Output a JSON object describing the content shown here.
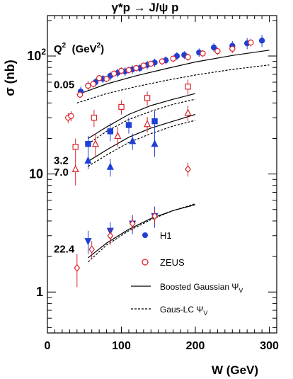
{
  "chart_data": {
    "type": "scatter",
    "title": "γ*p → J/ψ p",
    "xlabel": "W  (GeV)",
    "ylabel": "σ (nb)",
    "xlim": [
      0,
      310
    ],
    "ylim": [
      0.45,
      220
    ],
    "yscale": "log",
    "x_ticks": [
      {
        "v": 0,
        "label": "0"
      },
      {
        "v": 100,
        "label": "100"
      },
      {
        "v": 200,
        "label": "200"
      },
      {
        "v": 300,
        "label": "300"
      }
    ],
    "y_ticks": [
      {
        "v": 1,
        "label": "1",
        "sup": ""
      },
      {
        "v": 10,
        "label": "10",
        "sup": ""
      },
      {
        "v": 100,
        "label": "10",
        "sup": "2"
      }
    ],
    "q2_header": {
      "main": "Q",
      "sup1": "2",
      "open": "  (GeV",
      "sup2": "2",
      "close": ")"
    },
    "bin_labels": [
      {
        "text": "0.05",
        "y": 58
      },
      {
        "text": "3.2",
        "y": 13.2
      },
      {
        "text": "7.0",
        "y": 10.5
      },
      {
        "text": "22.4",
        "y": 2.35
      }
    ],
    "colors": {
      "h1": "#1f3fd6",
      "zeus": "#d8242a",
      "curve": "#000000"
    },
    "legend": {
      "h1": "H1",
      "zeus": "ZEUS",
      "solid_main": "Boosted Gaussian Ψ",
      "solid_sub": "V",
      "dashed_main": "Gaus-LC Ψ",
      "dashed_sub": "V"
    },
    "series": [
      {
        "name": "H1",
        "bin": "0.05",
        "marker": "circle",
        "filled": true,
        "color": "#1f3fd6",
        "x": [
          45,
          55,
          65,
          75,
          85,
          95,
          105,
          115,
          125,
          135,
          145,
          160,
          175,
          185,
          205,
          225,
          250,
          270,
          290
        ],
        "y": [
          50,
          56,
          60,
          64,
          68,
          72,
          74,
          77,
          79,
          84,
          88,
          92,
          100,
          102,
          107,
          118,
          122,
          128,
          135
        ],
        "err": [
          5,
          5,
          5,
          5,
          6,
          6,
          6,
          6,
          6,
          7,
          7,
          7,
          8,
          8,
          9,
          10,
          12,
          14,
          16
        ]
      },
      {
        "name": "ZEUS",
        "bin": "0.05",
        "marker": "circle",
        "filled": false,
        "color": "#d8242a",
        "x": [
          28,
          32,
          44,
          55,
          62,
          70,
          80,
          90,
          100,
          110,
          120,
          130,
          140,
          155,
          170,
          190,
          210,
          230,
          250,
          275
        ],
        "y": [
          30,
          31,
          47,
          56,
          58,
          65,
          64,
          71,
          75,
          76,
          79,
          83,
          86,
          90,
          95,
          98,
          105,
          110,
          115,
          130
        ],
        "err": [
          3,
          3,
          3,
          4,
          4,
          4,
          4,
          4,
          5,
          5,
          5,
          5,
          5,
          6,
          6,
          7,
          7,
          8,
          9,
          10
        ]
      },
      {
        "name": "H1",
        "bin": "3.2",
        "marker": "square",
        "filled": true,
        "color": "#1f3fd6",
        "x": [
          55,
          85,
          110,
          145
        ],
        "y": [
          18,
          23,
          26,
          28
        ],
        "err": [
          3,
          4,
          4,
          6
        ]
      },
      {
        "name": "ZEUS",
        "bin": "3.2",
        "marker": "square",
        "filled": false,
        "color": "#d8242a",
        "x": [
          38,
          63,
          100,
          135,
          190
        ],
        "y": [
          17,
          30,
          37,
          44,
          55
        ],
        "err": [
          3,
          5,
          5,
          6,
          8
        ]
      },
      {
        "name": "H1",
        "bin": "7.0",
        "marker": "triangle",
        "filled": true,
        "color": "#1f3fd6",
        "x": [
          55,
          85,
          115,
          145
        ],
        "y": [
          13,
          11.5,
          19,
          18
        ],
        "err": [
          2,
          2,
          3,
          4
        ]
      },
      {
        "name": "ZEUS",
        "bin": "7.0",
        "marker": "triangle",
        "filled": false,
        "color": "#d8242a",
        "x": [
          38,
          65,
          95,
          135,
          190
        ],
        "y": [
          11,
          18,
          21,
          26.5,
          33
        ],
        "err": [
          3,
          4,
          4,
          4,
          5
        ]
      },
      {
        "name": "H1",
        "bin": "22.4",
        "marker": "triangle-down",
        "filled": true,
        "color": "#1f3fd6",
        "x": [
          55,
          85,
          115,
          145
        ],
        "y": [
          2.7,
          3.3,
          3.8,
          4.4
        ],
        "err": [
          0.6,
          0.6,
          0.7,
          0.9
        ]
      },
      {
        "name": "ZEUS",
        "bin": "22.4",
        "marker": "diamond",
        "filled": false,
        "color": "#d8242a",
        "x": [
          40,
          60,
          85,
          115,
          145,
          190
        ],
        "y": [
          1.6,
          2.3,
          3.0,
          3.8,
          4.4,
          11
        ],
        "err": [
          0.5,
          0.4,
          0.5,
          0.5,
          0.6,
          1.5
        ]
      }
    ],
    "curves": [
      {
        "style": "solid",
        "bin": "0.05",
        "x": [
          40,
          80,
          120,
          160,
          200,
          250,
          300
        ],
        "y": [
          47,
          58,
          68,
          78,
          89,
          101,
          112
        ]
      },
      {
        "style": "dashed",
        "bin": "0.05",
        "x": [
          40,
          80,
          120,
          160,
          200,
          250,
          300
        ],
        "y": [
          40,
          48,
          55,
          62,
          69,
          77,
          84
        ]
      },
      {
        "style": "solid",
        "bin": "3.2",
        "x": [
          55,
          80,
          110,
          140,
          170,
          200
        ],
        "y": [
          20,
          25,
          32,
          38,
          43,
          48
        ]
      },
      {
        "style": "dashed",
        "bin": "3.2",
        "x": [
          55,
          80,
          110,
          140,
          170,
          200
        ],
        "y": [
          18,
          23,
          29,
          34,
          39,
          43
        ]
      },
      {
        "style": "solid",
        "bin": "7.0",
        "x": [
          55,
          80,
          110,
          140,
          170,
          200
        ],
        "y": [
          12.8,
          16,
          20.5,
          24.5,
          28,
          32
        ]
      },
      {
        "style": "dashed",
        "bin": "7.0",
        "x": [
          55,
          80,
          110,
          140,
          170,
          200
        ],
        "y": [
          11.6,
          14.5,
          18.5,
          22,
          25.5,
          28.5
        ]
      },
      {
        "style": "solid",
        "bin": "22.4",
        "x": [
          55,
          80,
          110,
          140,
          170,
          200
        ],
        "y": [
          1.95,
          2.6,
          3.4,
          4.2,
          4.9,
          5.5
        ]
      },
      {
        "style": "dashed",
        "bin": "22.4",
        "x": [
          55,
          80,
          110,
          140,
          170,
          200
        ],
        "y": [
          1.8,
          2.5,
          3.3,
          4.1,
          4.9,
          5.6
        ]
      }
    ]
  }
}
